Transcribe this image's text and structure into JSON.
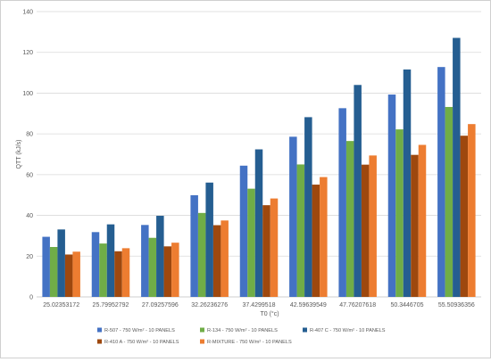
{
  "chart_data": {
    "type": "bar",
    "xlabel": "T0 (°c)",
    "ylabel": "QTT (kJ/s)",
    "ylim": [
      0,
      140
    ],
    "yticks": [
      "0",
      "20",
      "40",
      "60",
      "80",
      "100",
      "120",
      "140"
    ],
    "grid": true,
    "legend_position": "bottom",
    "categories": [
      "25.02353172",
      "25.79952792",
      "27.09257596",
      "32.26236276",
      "37.4299518",
      "42.59639549",
      "47.76207618",
      "50.3446705",
      "55.50936356"
    ],
    "series": [
      {
        "name": "R-507 - 750 W/m² - 10 PANELS",
        "color": "#4472c4",
        "values": [
          29.5,
          31.8,
          35.3,
          49.9,
          64.4,
          78.6,
          92.6,
          99.3,
          112.8
        ]
      },
      {
        "name": "R-134 - 750 W/m² - 10 PANELS",
        "color": "#70ad47",
        "values": [
          24.5,
          26.2,
          29.0,
          41.2,
          53.1,
          65.0,
          76.5,
          82.2,
          93.2
        ]
      },
      {
        "name": "R-407 C - 750 W/m² - 10 PANELS",
        "color": "#255e91",
        "values": [
          33.1,
          35.6,
          39.8,
          56.1,
          72.4,
          88.2,
          104.0,
          111.6,
          127.1
        ]
      },
      {
        "name": "R-410 A - 750 W/m² - 10 PANELS",
        "color": "#9e480e",
        "values": [
          20.8,
          22.4,
          24.8,
          35.2,
          45.0,
          55.1,
          64.9,
          69.7,
          79.1
        ]
      },
      {
        "name": "R-MIXTURE - 750 W/m² - 10 PANELS",
        "color": "#ed7d31",
        "values": [
          22.2,
          23.9,
          26.6,
          37.5,
          48.3,
          58.8,
          69.4,
          74.6,
          84.8
        ]
      }
    ]
  }
}
